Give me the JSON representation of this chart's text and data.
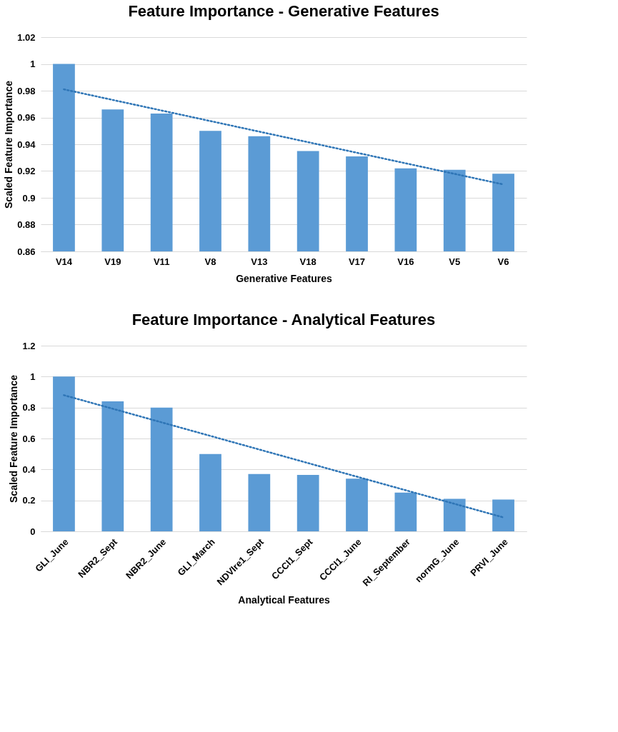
{
  "chart_data": [
    {
      "type": "bar",
      "title": "Feature Importance - Generative Features",
      "xlabel": "Generative Features",
      "ylabel": "Scaled Feature Importance",
      "categories": [
        "V14",
        "V19",
        "V11",
        "V8",
        "V13",
        "V18",
        "V17",
        "V16",
        "V5",
        "V6"
      ],
      "series": [
        {
          "color": "#5b9bd5",
          "values": [
            1.0,
            0.966,
            0.963,
            0.95,
            0.946,
            0.935,
            0.931,
            0.922,
            0.921,
            0.918
          ]
        },
        {
          "type": "line",
          "color": "#2e75b6",
          "line_style": "dotted",
          "values": [
            0.981,
            null,
            null,
            null,
            null,
            null,
            null,
            null,
            null,
            0.91
          ]
        }
      ],
      "ylim": [
        0.86,
        1.02
      ],
      "yticks": [
        0.86,
        0.88,
        {
          "value": 0.9,
          "label": "0.9"
        },
        0.92,
        0.94,
        0.96,
        0.98,
        {
          "value": 1,
          "label": "1"
        },
        1.02
      ],
      "grid": "y"
    },
    {
      "type": "bar",
      "title": "Feature Importance - Analytical Features",
      "xlabel": "Analytical Features",
      "ylabel": "Scaled Feature Importance",
      "categories": [
        "GLI_June",
        "NBR2_Sept",
        "NBR2_June",
        "GLI_March",
        "NDVIre1_Sept",
        "CCCI1_Sept",
        "CCCI1_June",
        "RI_September",
        "normG_June",
        "PRVI_June"
      ],
      "series": [
        {
          "color": "#5b9bd5",
          "values": [
            1.0,
            0.84,
            0.8,
            0.5,
            0.37,
            0.365,
            0.34,
            0.25,
            0.21,
            0.205
          ]
        },
        {
          "type": "line",
          "color": "#2e75b6",
          "line_style": "dotted",
          "values": [
            0.88,
            null,
            null,
            null,
            null,
            null,
            null,
            null,
            null,
            0.09
          ]
        }
      ],
      "ylim": [
        0,
        1.2
      ],
      "yticks": [
        0,
        0.2,
        0.4,
        0.6,
        0.8,
        1,
        1.2
      ],
      "grid": "y"
    }
  ]
}
